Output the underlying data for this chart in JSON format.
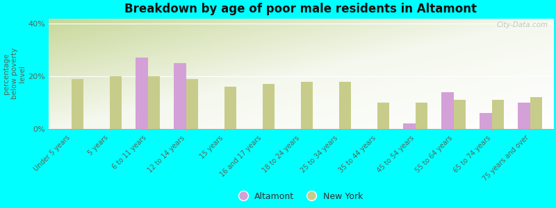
{
  "title": "Breakdown by age of poor male residents in Altamont",
  "ylabel": "percentage\nbelow poverty\nlevel",
  "background_color": "#00ffff",
  "categories": [
    "Under 5 years",
    "5 years",
    "6 to 11 years",
    "12 to 14 years",
    "15 years",
    "16 and 17 years",
    "18 to 24 years",
    "25 to 34 years",
    "35 to 44 years",
    "45 to 54 years",
    "55 to 64 years",
    "65 to 74 years",
    "75 years and over"
  ],
  "altamont_values": [
    null,
    null,
    27,
    25,
    null,
    null,
    null,
    null,
    null,
    2,
    14,
    6,
    10
  ],
  "newyork_values": [
    19,
    20,
    20,
    19,
    16,
    17,
    18,
    18,
    10,
    10,
    11,
    11,
    12
  ],
  "altamont_color": "#d4a0d8",
  "newyork_color": "#c8cc8a",
  "bar_width": 0.32,
  "ylim": [
    0,
    42
  ],
  "yticks": [
    0,
    20,
    40
  ],
  "ytick_labels": [
    "0%",
    "20%",
    "40%"
  ],
  "watermark": "City-Data.com",
  "legend_altamont": "Altamont",
  "legend_newyork": "New York"
}
